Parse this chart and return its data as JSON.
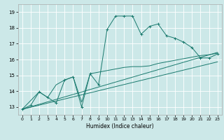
{
  "title": "",
  "xlabel": "Humidex (Indice chaleur)",
  "xlim": [
    -0.5,
    23.5
  ],
  "ylim": [
    12.5,
    19.5
  ],
  "xticks": [
    0,
    1,
    2,
    3,
    4,
    5,
    6,
    7,
    8,
    9,
    10,
    11,
    12,
    13,
    14,
    15,
    16,
    17,
    18,
    19,
    20,
    21,
    22,
    23
  ],
  "yticks": [
    13,
    14,
    15,
    16,
    17,
    18,
    19
  ],
  "background_color": "#cce8e8",
  "grid_color": "#ffffff",
  "line_color": "#1a7a6e",
  "line1_x": [
    0,
    1,
    2,
    3,
    4,
    5,
    6,
    7,
    8,
    9,
    10,
    11,
    12,
    13,
    14,
    15,
    16,
    17,
    18,
    19,
    20,
    21,
    22,
    23
  ],
  "line1_y": [
    12.85,
    13.1,
    13.95,
    13.6,
    13.25,
    14.7,
    14.9,
    13.0,
    15.1,
    14.4,
    17.9,
    18.75,
    18.75,
    18.75,
    17.6,
    18.1,
    18.25,
    17.5,
    17.35,
    17.1,
    16.75,
    16.1,
    16.1,
    16.35
  ],
  "line2_x": [
    0,
    2,
    3,
    4,
    5,
    6,
    7,
    8,
    10,
    11,
    12,
    13,
    14,
    15,
    16,
    17,
    18,
    19,
    20,
    21,
    22,
    23
  ],
  "line2_y": [
    12.85,
    13.95,
    13.6,
    14.4,
    14.7,
    14.9,
    13.3,
    15.1,
    15.3,
    15.4,
    15.5,
    15.55,
    15.55,
    15.6,
    15.75,
    15.85,
    15.95,
    16.05,
    16.15,
    16.25,
    16.3,
    16.4
  ],
  "line3_x": [
    0,
    23
  ],
  "line3_y": [
    12.85,
    16.45
  ],
  "line4_x": [
    0,
    23
  ],
  "line4_y": [
    12.85,
    15.85
  ]
}
